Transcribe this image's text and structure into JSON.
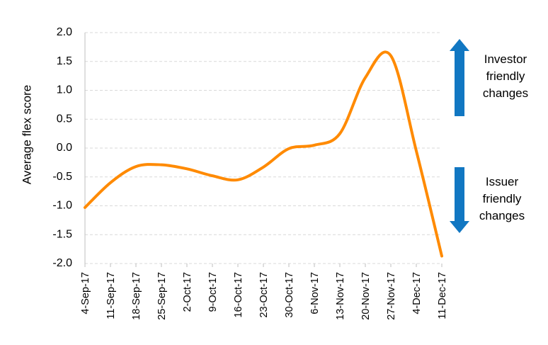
{
  "chart_data": {
    "type": "line",
    "ylabel": "Average flex score",
    "xlabel": "",
    "ylim": [
      -2.0,
      2.0
    ],
    "yticks": [
      "2.0",
      "1.5",
      "1.0",
      "0.5",
      "0.0",
      "-0.5",
      "-1.0",
      "-1.5",
      "-2.0"
    ],
    "ytick_values": [
      2.0,
      1.5,
      1.0,
      0.5,
      0.0,
      -0.5,
      -1.0,
      -1.5,
      -2.0
    ],
    "categories": [
      "4-Sep-17",
      "11-Sep-17",
      "18-Sep-17",
      "25-Sep-17",
      "2-Oct-17",
      "9-Oct-17",
      "16-Oct-17",
      "23-Oct-17",
      "30-Oct-17",
      "6-Nov-17",
      "13-Nov-17",
      "20-Nov-17",
      "27-Nov-17",
      "4-Dec-17",
      "11-Dec-17"
    ],
    "series": [
      {
        "values": [
          -1.03,
          -0.6,
          -0.32,
          -0.29,
          -0.36,
          -0.48,
          -0.55,
          -0.33,
          -0.01,
          0.05,
          0.25,
          1.22,
          1.6,
          -0.05,
          -1.87
        ],
        "color": "#ff8a00"
      }
    ],
    "grid": true,
    "annotations": [
      {
        "lines": [
          "Investor",
          "friendly",
          "changes"
        ],
        "arrow": "up",
        "color": "#1177c2"
      },
      {
        "lines": [
          "Issuer",
          "friendly",
          "changes"
        ],
        "arrow": "down",
        "color": "#1177c2"
      }
    ]
  }
}
